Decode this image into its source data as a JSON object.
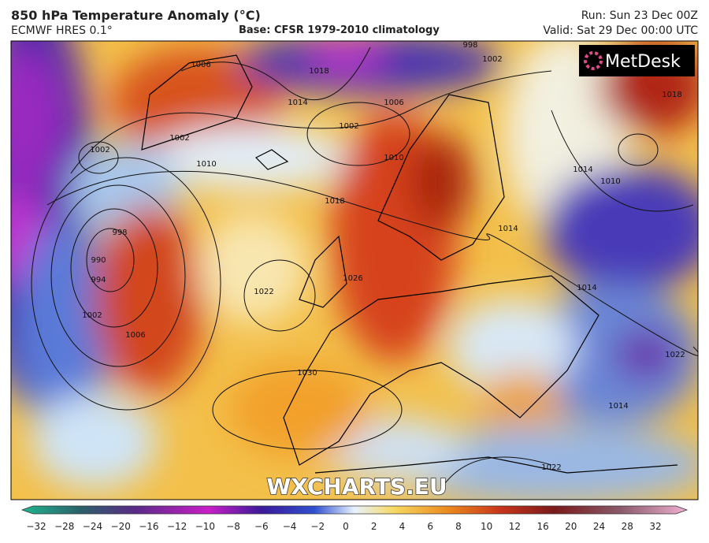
{
  "header": {
    "title": "850 hPa Temperature Anomaly (°C)",
    "model": "ECMWF HRES 0.1°",
    "base": "Base: CFSR 1979-2010 climatology",
    "run": "Run: Sun 23 Dec 00Z",
    "valid": "Valid: Sat 29 Dec 00:00 UTC"
  },
  "logo": "MetDesk",
  "watermark": "WXCHARTS.EU",
  "isobar_labels": [
    "1006",
    "1018",
    "1002",
    "998",
    "1014",
    "1006",
    "1002",
    "1002",
    "1002",
    "1010",
    "1010",
    "1018",
    "998",
    "990",
    "994",
    "1026",
    "1022",
    "1002",
    "1006",
    "1014",
    "1014",
    "1010",
    "1014",
    "1030",
    "1014",
    "1022",
    "1022",
    "1018"
  ],
  "colorbar": {
    "labels": [
      "−32",
      "−28",
      "−24",
      "−20",
      "−16",
      "−12",
      "−10",
      "−8",
      "−6",
      "−4",
      "−2",
      "0",
      "2",
      "4",
      "6",
      "8",
      "10",
      "12",
      "16",
      "20",
      "24",
      "28",
      "32"
    ]
  }
}
